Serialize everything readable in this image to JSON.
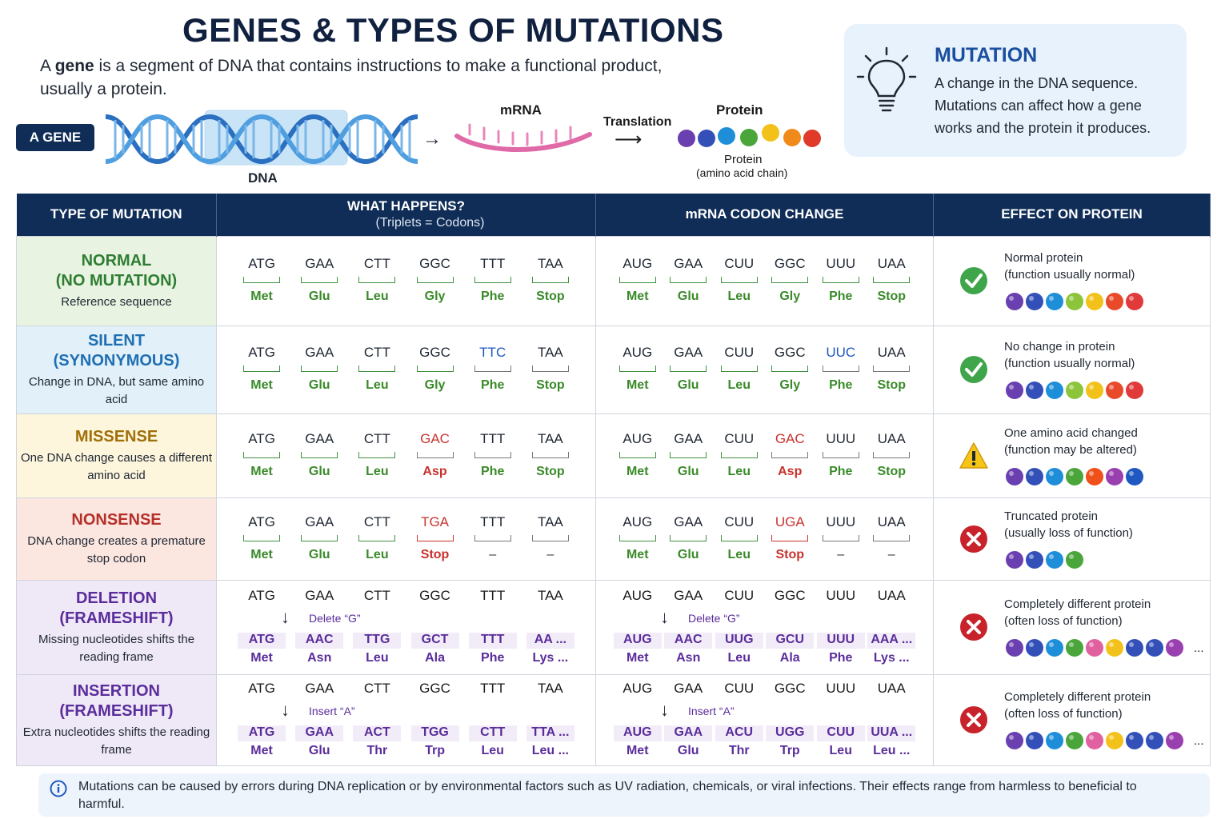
{
  "title": "GENES & TYPES OF MUTATIONS",
  "intro": {
    "pre": "A ",
    "bold": "gene",
    "post": " is a segment of DNA that contains instructions to make a functional product, usually a protein."
  },
  "gene_badge": "A GENE",
  "dna_label": "DNA",
  "mrna_label": "mRNA",
  "translation_label": "Translation",
  "protein_title": "Protein",
  "protein_caption1": "Protein",
  "protein_caption2": "(amino acid chain)",
  "mutation_box": {
    "title": "MUTATION",
    "text": "A change in the DNA sequence. Mutations can affect how a gene works and the protein it produces."
  },
  "headers": {
    "type": "TYPE OF MUTATION",
    "what": "WHAT HAPPENS?",
    "what_sub": "(Triplets = Codons)",
    "mrna": "mRNA CODON CHANGE",
    "effect": "EFFECT ON PROTEIN"
  },
  "rows": [
    {
      "t1": "NORMAL",
      "t2": "(NO MUTATION)",
      "desc": "Reference sequence",
      "color": "#2e7d32",
      "bg": "#e8f4e1",
      "dna": [
        "ATG",
        "GAA",
        "CTT",
        "GGC",
        "TTT",
        "TAA"
      ],
      "rna": [
        "AUG",
        "GAA",
        "CUU",
        "GGC",
        "UUU",
        "UAA"
      ],
      "aa": [
        "Met",
        "Glu",
        "Leu",
        "Gly",
        "Phe",
        "Stop"
      ],
      "effect1": "Normal protein",
      "effect2": "(function usually normal)"
    },
    {
      "t1": "SILENT",
      "t2": "(SYNONYMOUS)",
      "desc": "Change in DNA, but same amino acid",
      "color": "#1f6fb2",
      "bg": "#e1f0f9",
      "dna": [
        "ATG",
        "GAA",
        "CTT",
        "GGC",
        "TTC",
        "TAA"
      ],
      "rna": [
        "AUG",
        "GAA",
        "CUU",
        "GGC",
        "UUC",
        "UAA"
      ],
      "aa": [
        "Met",
        "Glu",
        "Leu",
        "Gly",
        "Phe",
        "Stop"
      ],
      "effect1": "No change in protein",
      "effect2": "(function usually normal)"
    },
    {
      "t1": "MISSENSE",
      "t2": "",
      "desc": "One DNA change causes a different amino acid",
      "color": "#a0700a",
      "bg": "#fdf5dc",
      "dna": [
        "ATG",
        "GAA",
        "CTT",
        "GAC",
        "TTT",
        "TAA"
      ],
      "rna": [
        "AUG",
        "GAA",
        "CUU",
        "GAC",
        "UUU",
        "UAA"
      ],
      "aa": [
        "Met",
        "Glu",
        "Leu",
        "Asp",
        "Phe",
        "Stop"
      ],
      "effect1": "One amino acid changed",
      "effect2": "(function may be altered)"
    },
    {
      "t1": "NONSENSE",
      "t2": "",
      "desc": "DNA change creates a premature stop codon",
      "color": "#b5302a",
      "bg": "#fce6e0",
      "dna": [
        "ATG",
        "GAA",
        "CTT",
        "TGA",
        "TTT",
        "TAA"
      ],
      "rna": [
        "AUG",
        "GAA",
        "CUU",
        "UGA",
        "UUU",
        "UAA"
      ],
      "aa": [
        "Met",
        "Glu",
        "Leu",
        "Stop",
        "–",
        "–"
      ],
      "effect1": "Truncated protein",
      "effect2": "(usually loss of function)"
    },
    {
      "t1": "DELETION",
      "t2": "(FRAMESHIFT)",
      "desc": "Missing nucleotides shifts the reading frame",
      "color": "#5a2d9a",
      "bg": "#efe8f7",
      "dna": [
        "ATG",
        "GAA",
        "CTT",
        "GGC",
        "TTT",
        "TAA"
      ],
      "rna": [
        "AUG",
        "GAA",
        "CUU",
        "GGC",
        "UUU",
        "UAA"
      ],
      "note": "Delete “G”",
      "dna_new": [
        "ATG",
        "AAC",
        "TTG",
        "GCT",
        "TTT",
        "AA ..."
      ],
      "rna_new": [
        "AUG",
        "AAC",
        "UUG",
        "GCU",
        "UUU",
        "AAA ..."
      ],
      "aa": [
        "Met",
        "Asn",
        "Leu",
        "Ala",
        "Phe",
        "Lys ..."
      ],
      "effect1": "Completely different protein",
      "effect2": "(often loss of function)",
      "ellipsis": "..."
    },
    {
      "t1": "INSERTION",
      "t2": "(FRAMESHIFT)",
      "desc": "Extra nucleotides shifts the reading frame",
      "color": "#5a2d9a",
      "bg": "#efe8f7",
      "dna": [
        "ATG",
        "GAA",
        "CTT",
        "GGC",
        "TTT",
        "TAA"
      ],
      "rna": [
        "AUG",
        "GAA",
        "CUU",
        "GGC",
        "UUU",
        "UAA"
      ],
      "note": "Insert “A”",
      "dna_new": [
        "ATG",
        "GAA",
        "ACT",
        "TGG",
        "CTT",
        "TTA ..."
      ],
      "rna_new": [
        "AUG",
        "GAA",
        "ACU",
        "UGG",
        "CUU",
        "UUA ..."
      ],
      "aa": [
        "Met",
        "Glu",
        "Thr",
        "Trp",
        "Leu",
        "Leu ..."
      ],
      "effect1": "Completely different protein",
      "effect2": "(often loss of function)",
      "ellipsis": "..."
    }
  ],
  "footer": "Mutations can be caused by errors during DNA replication or by environmental factors such as UV radiation, chemicals, or viral infections. Their effects range from harmless to beneficial to harmful.",
  "colors": {
    "navy": "#0f2d57",
    "green": "#3a8a2a",
    "red": "#c8322d",
    "blue": "#1f58c0",
    "purple": "#5a2d9a"
  },
  "icons": {
    "normal": "check-icon",
    "silent": "check-icon",
    "missense": "warning-icon",
    "nonsense": "x-icon",
    "deletion": "x-icon",
    "insertion": "x-icon",
    "mutation": "lightbulb-icon",
    "footer": "info-icon"
  }
}
